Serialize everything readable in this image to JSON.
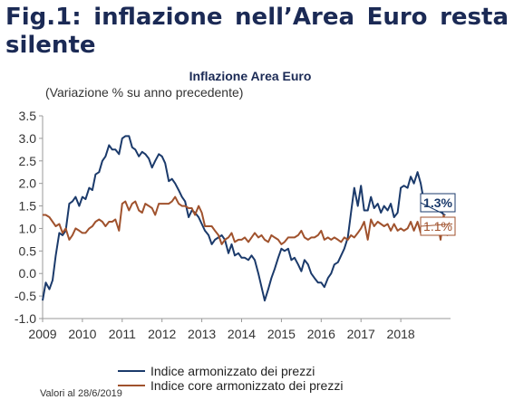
{
  "header": {
    "title": "Fig.1: inflazione nell’Area Euro resta silente"
  },
  "footnote": "Valori al 28/6/2019",
  "chart_data": {
    "type": "line",
    "title": "Inflazione Area Euro",
    "subtitle": "(Variazione % su anno precedente)",
    "xlabel": "",
    "ylabel": "",
    "xlim": [
      2009.0,
      2019.25
    ],
    "ylim": [
      -1.0,
      3.5
    ],
    "y_ticks": [
      "3.5",
      "3.0",
      "2.5",
      "2.0",
      "1.5",
      "1.0",
      "0.5",
      "0.0",
      "-0.5",
      "-1.0"
    ],
    "x_ticks": [
      "2009",
      "2010",
      "2011",
      "2012",
      "2013",
      "2014",
      "2015",
      "2016",
      "2017",
      "2018"
    ],
    "grid": false,
    "legend_position": "bottom",
    "series": [
      {
        "name": "Indice armonizzato dei prezzi",
        "color": "#1b3a6b",
        "end_label": "1.3%",
        "points": [
          [
            2009.0,
            -0.6
          ],
          [
            2009.08,
            -0.2
          ],
          [
            2009.17,
            -0.35
          ],
          [
            2009.25,
            -0.15
          ],
          [
            2009.33,
            0.4
          ],
          [
            2009.42,
            0.9
          ],
          [
            2009.5,
            0.85
          ],
          [
            2009.58,
            0.95
          ],
          [
            2009.67,
            1.55
          ],
          [
            2009.75,
            1.6
          ],
          [
            2009.83,
            1.7
          ],
          [
            2009.92,
            1.5
          ],
          [
            2010.0,
            1.7
          ],
          [
            2010.08,
            1.65
          ],
          [
            2010.17,
            1.9
          ],
          [
            2010.25,
            1.85
          ],
          [
            2010.33,
            2.2
          ],
          [
            2010.42,
            2.25
          ],
          [
            2010.5,
            2.5
          ],
          [
            2010.58,
            2.6
          ],
          [
            2010.67,
            2.85
          ],
          [
            2010.75,
            2.75
          ],
          [
            2010.83,
            2.75
          ],
          [
            2010.92,
            2.65
          ],
          [
            2011.0,
            3.0
          ],
          [
            2011.08,
            3.05
          ],
          [
            2011.17,
            3.05
          ],
          [
            2011.25,
            2.8
          ],
          [
            2011.33,
            2.75
          ],
          [
            2011.42,
            2.6
          ],
          [
            2011.5,
            2.7
          ],
          [
            2011.58,
            2.65
          ],
          [
            2011.67,
            2.55
          ],
          [
            2011.75,
            2.35
          ],
          [
            2011.83,
            2.5
          ],
          [
            2011.92,
            2.65
          ],
          [
            2012.0,
            2.6
          ],
          [
            2012.08,
            2.45
          ],
          [
            2012.17,
            2.05
          ],
          [
            2012.25,
            2.1
          ],
          [
            2012.33,
            2.0
          ],
          [
            2012.42,
            1.85
          ],
          [
            2012.5,
            1.7
          ],
          [
            2012.58,
            1.6
          ],
          [
            2012.67,
            1.25
          ],
          [
            2012.75,
            1.4
          ],
          [
            2012.83,
            1.35
          ],
          [
            2012.92,
            1.25
          ],
          [
            2013.0,
            1.1
          ],
          [
            2013.08,
            0.95
          ],
          [
            2013.17,
            0.85
          ],
          [
            2013.25,
            0.65
          ],
          [
            2013.33,
            0.75
          ],
          [
            2013.42,
            0.8
          ],
          [
            2013.5,
            0.85
          ],
          [
            2013.58,
            0.75
          ],
          [
            2013.67,
            0.45
          ],
          [
            2013.75,
            0.65
          ],
          [
            2013.83,
            0.4
          ],
          [
            2013.92,
            0.45
          ],
          [
            2014.0,
            0.35
          ],
          [
            2014.08,
            0.35
          ],
          [
            2014.17,
            0.3
          ],
          [
            2014.25,
            0.4
          ],
          [
            2014.33,
            0.3
          ],
          [
            2014.42,
            0.0
          ],
          [
            2014.5,
            -0.3
          ],
          [
            2014.58,
            -0.6
          ],
          [
            2014.67,
            -0.35
          ],
          [
            2014.75,
            -0.1
          ],
          [
            2014.83,
            0.1
          ],
          [
            2014.92,
            0.35
          ],
          [
            2015.0,
            0.55
          ],
          [
            2015.08,
            0.5
          ],
          [
            2015.17,
            0.55
          ],
          [
            2015.25,
            0.3
          ],
          [
            2015.33,
            0.35
          ],
          [
            2015.42,
            0.2
          ],
          [
            2015.5,
            0.05
          ],
          [
            2015.58,
            0.3
          ],
          [
            2015.67,
            0.2
          ],
          [
            2015.75,
            0.0
          ],
          [
            2015.83,
            -0.1
          ],
          [
            2015.92,
            -0.2
          ],
          [
            2016.0,
            -0.2
          ],
          [
            2016.08,
            -0.3
          ],
          [
            2016.17,
            -0.1
          ],
          [
            2016.25,
            0.0
          ],
          [
            2016.33,
            0.2
          ],
          [
            2016.42,
            0.25
          ],
          [
            2016.5,
            0.4
          ],
          [
            2016.58,
            0.55
          ],
          [
            2016.67,
            0.8
          ],
          [
            2016.75,
            1.35
          ],
          [
            2016.83,
            1.9
          ],
          [
            2016.92,
            1.5
          ],
          [
            2017.0,
            1.95
          ],
          [
            2017.08,
            1.4
          ],
          [
            2017.17,
            1.4
          ],
          [
            2017.25,
            1.7
          ],
          [
            2017.33,
            1.45
          ],
          [
            2017.42,
            1.55
          ],
          [
            2017.5,
            1.35
          ],
          [
            2017.58,
            1.5
          ],
          [
            2017.67,
            1.4
          ],
          [
            2017.75,
            1.55
          ],
          [
            2017.83,
            1.25
          ],
          [
            2017.92,
            1.35
          ],
          [
            2018.0,
            1.9
          ],
          [
            2018.08,
            1.95
          ],
          [
            2018.17,
            1.9
          ],
          [
            2018.25,
            2.15
          ],
          [
            2018.33,
            2.0
          ],
          [
            2018.42,
            2.25
          ],
          [
            2018.5,
            2.0
          ],
          [
            2018.58,
            1.6
          ],
          [
            2018.67,
            1.4
          ],
          [
            2018.75,
            1.5
          ],
          [
            2018.83,
            1.4
          ],
          [
            2018.92,
            1.7
          ],
          [
            2019.0,
            1.4
          ],
          [
            2019.08,
            1.3
          ]
        ]
      },
      {
        "name": "Indice core armonizzato dei prezzi",
        "color": "#a0522d",
        "end_label": "1.1%",
        "points": [
          [
            2009.0,
            1.3
          ],
          [
            2009.08,
            1.3
          ],
          [
            2009.17,
            1.25
          ],
          [
            2009.25,
            1.15
          ],
          [
            2009.33,
            1.05
          ],
          [
            2009.42,
            1.1
          ],
          [
            2009.5,
            0.9
          ],
          [
            2009.58,
            1.0
          ],
          [
            2009.67,
            0.75
          ],
          [
            2009.75,
            0.85
          ],
          [
            2009.83,
            1.0
          ],
          [
            2009.92,
            0.95
          ],
          [
            2010.0,
            0.9
          ],
          [
            2010.08,
            0.9
          ],
          [
            2010.17,
            1.0
          ],
          [
            2010.25,
            1.05
          ],
          [
            2010.33,
            1.15
          ],
          [
            2010.42,
            1.2
          ],
          [
            2010.5,
            1.15
          ],
          [
            2010.58,
            1.05
          ],
          [
            2010.67,
            1.15
          ],
          [
            2010.75,
            1.15
          ],
          [
            2010.83,
            1.2
          ],
          [
            2010.92,
            0.95
          ],
          [
            2011.0,
            1.55
          ],
          [
            2011.08,
            1.6
          ],
          [
            2011.17,
            1.4
          ],
          [
            2011.25,
            1.55
          ],
          [
            2011.33,
            1.6
          ],
          [
            2011.42,
            1.4
          ],
          [
            2011.5,
            1.35
          ],
          [
            2011.58,
            1.55
          ],
          [
            2011.67,
            1.5
          ],
          [
            2011.75,
            1.45
          ],
          [
            2011.83,
            1.3
          ],
          [
            2011.92,
            1.55
          ],
          [
            2012.0,
            1.55
          ],
          [
            2012.08,
            1.55
          ],
          [
            2012.17,
            1.55
          ],
          [
            2012.25,
            1.6
          ],
          [
            2012.33,
            1.7
          ],
          [
            2012.42,
            1.55
          ],
          [
            2012.5,
            1.5
          ],
          [
            2012.58,
            1.5
          ],
          [
            2012.67,
            1.45
          ],
          [
            2012.75,
            1.45
          ],
          [
            2012.83,
            1.3
          ],
          [
            2012.92,
            1.5
          ],
          [
            2013.0,
            1.35
          ],
          [
            2013.08,
            1.05
          ],
          [
            2013.17,
            1.05
          ],
          [
            2013.25,
            1.05
          ],
          [
            2013.33,
            0.95
          ],
          [
            2013.42,
            0.85
          ],
          [
            2013.5,
            0.65
          ],
          [
            2013.58,
            0.75
          ],
          [
            2013.67,
            0.8
          ],
          [
            2013.75,
            0.9
          ],
          [
            2013.83,
            0.7
          ],
          [
            2013.92,
            0.75
          ],
          [
            2014.0,
            0.75
          ],
          [
            2014.08,
            0.8
          ],
          [
            2014.17,
            0.7
          ],
          [
            2014.25,
            0.8
          ],
          [
            2014.33,
            0.9
          ],
          [
            2014.42,
            0.8
          ],
          [
            2014.5,
            0.85
          ],
          [
            2014.58,
            0.75
          ],
          [
            2014.67,
            0.7
          ],
          [
            2014.75,
            0.85
          ],
          [
            2014.83,
            0.8
          ],
          [
            2014.92,
            0.75
          ],
          [
            2015.0,
            0.65
          ],
          [
            2015.08,
            0.7
          ],
          [
            2015.17,
            0.8
          ],
          [
            2015.25,
            0.8
          ],
          [
            2015.33,
            0.8
          ],
          [
            2015.42,
            0.85
          ],
          [
            2015.5,
            0.95
          ],
          [
            2015.58,
            0.8
          ],
          [
            2015.67,
            0.75
          ],
          [
            2015.75,
            0.8
          ],
          [
            2015.83,
            0.8
          ],
          [
            2015.92,
            0.85
          ],
          [
            2016.0,
            0.95
          ],
          [
            2016.08,
            0.75
          ],
          [
            2016.17,
            0.8
          ],
          [
            2016.25,
            0.75
          ],
          [
            2016.33,
            0.8
          ],
          [
            2016.42,
            0.75
          ],
          [
            2016.5,
            0.7
          ],
          [
            2016.58,
            0.8
          ],
          [
            2016.67,
            0.75
          ],
          [
            2016.75,
            0.85
          ],
          [
            2016.83,
            0.8
          ],
          [
            2016.92,
            0.9
          ],
          [
            2017.0,
            1.0
          ],
          [
            2017.08,
            1.15
          ],
          [
            2017.17,
            0.75
          ],
          [
            2017.25,
            1.2
          ],
          [
            2017.33,
            1.05
          ],
          [
            2017.42,
            1.15
          ],
          [
            2017.5,
            1.1
          ],
          [
            2017.58,
            1.05
          ],
          [
            2017.67,
            1.1
          ],
          [
            2017.75,
            0.95
          ],
          [
            2017.83,
            1.1
          ],
          [
            2017.92,
            0.95
          ],
          [
            2018.0,
            1.0
          ],
          [
            2018.08,
            0.95
          ],
          [
            2018.17,
            1.0
          ],
          [
            2018.25,
            1.15
          ],
          [
            2018.33,
            0.95
          ],
          [
            2018.42,
            1.15
          ],
          [
            2018.5,
            0.9
          ],
          [
            2018.58,
            1.1
          ],
          [
            2018.67,
            0.95
          ],
          [
            2018.75,
            1.05
          ],
          [
            2018.83,
            1.0
          ],
          [
            2018.92,
            1.15
          ],
          [
            2019.0,
            0.75
          ],
          [
            2019.08,
            1.3
          ],
          [
            2019.17,
            0.85
          ],
          [
            2019.25,
            1.1
          ]
        ]
      }
    ]
  }
}
